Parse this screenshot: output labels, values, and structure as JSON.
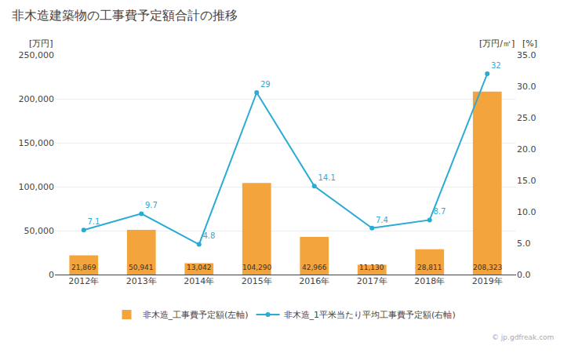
{
  "chart_data": {
    "type": "bar",
    "title": "非木造建築物の工事費予定額合計の推移",
    "categories": [
      "2012年",
      "2013年",
      "2014年",
      "2015年",
      "2016年",
      "2017年",
      "2018年",
      "2019年"
    ],
    "series": [
      {
        "name": "非木造_工事費予定額(左軸)",
        "type": "bar",
        "color": "#F4A43C",
        "values": [
          21869,
          50941,
          13042,
          104290,
          42966,
          11130,
          28811,
          208323
        ],
        "value_labels": [
          "21,869",
          "50,941",
          "13,042",
          "104,290",
          "42,966",
          "11,130",
          "28,811",
          "208,323"
        ],
        "data_labels": true
      },
      {
        "name": "非木造_1平米当たり平均工事費予定額(右軸)",
        "type": "line",
        "axis": "y2",
        "color": "#29ABD4",
        "marker": "circle",
        "values": [
          7.1,
          9.7,
          4.8,
          29.0,
          14.1,
          7.4,
          8.7,
          32.0
        ],
        "data_labels": true
      }
    ],
    "ylabel": "[万円]",
    "y2label": "[万円/㎡]",
    "annotations": [
      "[%]",
      "© jp.gdfreak.com"
    ],
    "ylim": [
      0,
      250000
    ],
    "yticks": [
      0,
      {
        "value": 50000,
        "label": "50,000"
      },
      {
        "value": 100000,
        "label": "100,000"
      },
      {
        "value": 150000,
        "label": "150,000"
      },
      {
        "value": 200000,
        "label": "200,000"
      },
      {
        "value": 250000,
        "label": "250,000"
      }
    ],
    "y2lim": [
      0,
      35.0
    ],
    "y2ticks": [
      {
        "value": 0.0,
        "label": "0.0"
      },
      {
        "value": 5.0,
        "label": "5.0"
      },
      {
        "value": 10.0,
        "label": "10.0"
      },
      {
        "value": 15.0,
        "label": "15.0"
      },
      {
        "value": 20.0,
        "label": "20.0"
      },
      {
        "value": 25.0,
        "label": "25.0"
      },
      {
        "value": 30.0,
        "label": "30.0"
      },
      {
        "value": 35.0,
        "label": "35.0"
      }
    ],
    "grid": true,
    "legend": "bottom"
  }
}
